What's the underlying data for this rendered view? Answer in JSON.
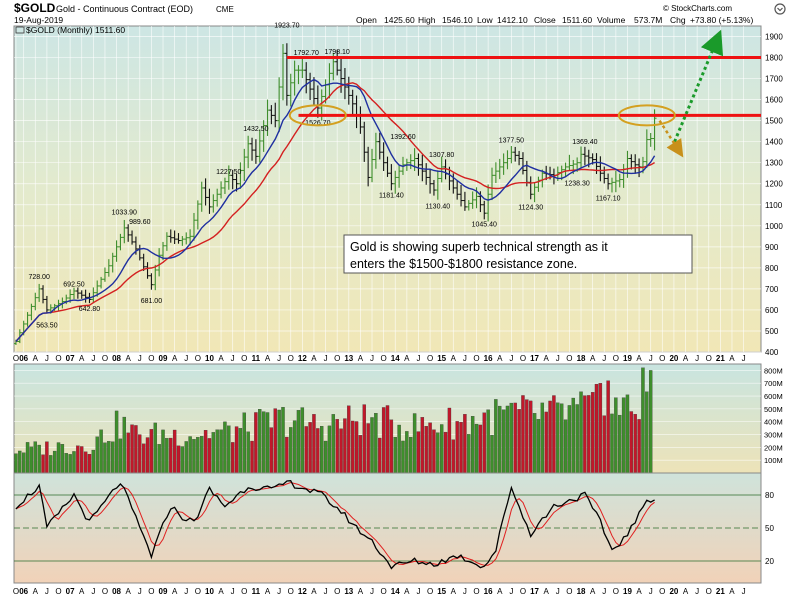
{
  "header": {
    "symbol": "$GOLD",
    "name": "Gold - Continuous Contract (EOD)",
    "exchange": "CME",
    "date": "19-Aug-2019",
    "credit": "© StockCharts.com",
    "stats": {
      "open_label": "Open",
      "open": "1425.60",
      "high_label": "High",
      "high": "1546.10",
      "low_label": "Low",
      "low": "1412.10",
      "close_label": "Close",
      "close": "1511.60",
      "volume_label": "Volume",
      "volume": "573.7M",
      "chg_label": "Chg",
      "chg": "+73.80 (+5.13%)"
    }
  },
  "legend": {
    "label": "$GOLD (Monthly) 1511.60",
    "icon": "chart-legend-icon"
  },
  "annotation": "Gold is showing superb technical strength as it enters the $1500-$1800 resistance zone.",
  "colors": {
    "up": "#3e8e2c",
    "down": "#c0182a",
    "ma_fast": "#1f2fa0",
    "ma_slow": "#d42020",
    "resistance": "#ee1111",
    "ellipse": "#d4a020",
    "arrow": "#1a9a2a",
    "brown_arrow": "#c8901a"
  },
  "chart_data": [
    {
      "type": "line",
      "title": "$GOLD (Monthly)",
      "ylim": [
        400,
        1950
      ],
      "yticks": [
        400,
        500,
        600,
        700,
        800,
        900,
        1000,
        1100,
        1200,
        1300,
        1400,
        1500,
        1600,
        1700,
        1800,
        1900
      ],
      "x_start": "2005-11",
      "x_end": "2021-11",
      "resistance_levels": [
        1525,
        1800
      ],
      "anchors": [
        [
          "2005-11",
          450
        ],
        [
          "2006-05",
          700
        ],
        [
          "2006-07",
          600
        ],
        [
          "2006-11",
          640
        ],
        [
          "2007-02",
          690
        ],
        [
          "2007-06",
          650
        ],
        [
          "2007-11",
          810
        ],
        [
          "2008-03",
          990
        ],
        [
          "2008-06",
          890
        ],
        [
          "2008-10",
          720
        ],
        [
          "2008-12",
          860
        ],
        [
          "2009-02",
          950
        ],
        [
          "2009-05",
          930
        ],
        [
          "2009-08",
          950
        ],
        [
          "2009-11",
          1180
        ],
        [
          "2010-01",
          1090
        ],
        [
          "2010-06",
          1240
        ],
        [
          "2010-08",
          1200
        ],
        [
          "2010-11",
          1390
        ],
        [
          "2011-01",
          1330
        ],
        [
          "2011-04",
          1550
        ],
        [
          "2011-06",
          1500
        ],
        [
          "2011-08",
          1820
        ],
        [
          "2011-09",
          1620
        ],
        [
          "2011-11",
          1740
        ],
        [
          "2012-01",
          1740
        ],
        [
          "2012-05",
          1560
        ],
        [
          "2012-09",
          1780
        ],
        [
          "2012-12",
          1660
        ],
        [
          "2013-02",
          1580
        ],
        [
          "2013-04",
          1470
        ],
        [
          "2013-06",
          1230
        ],
        [
          "2013-08",
          1400
        ],
        [
          "2013-12",
          1200
        ],
        [
          "2014-03",
          1290
        ],
        [
          "2014-06",
          1320
        ],
        [
          "2014-11",
          1170
        ],
        [
          "2015-01",
          1280
        ],
        [
          "2015-04",
          1180
        ],
        [
          "2015-07",
          1090
        ],
        [
          "2015-10",
          1140
        ],
        [
          "2015-12",
          1060
        ],
        [
          "2016-02",
          1240
        ],
        [
          "2016-06",
          1320
        ],
        [
          "2016-07",
          1350
        ],
        [
          "2016-09",
          1320
        ],
        [
          "2016-12",
          1150
        ],
        [
          "2017-03",
          1250
        ],
        [
          "2017-06",
          1240
        ],
        [
          "2017-09",
          1280
        ],
        [
          "2017-12",
          1300
        ],
        [
          "2018-01",
          1340
        ],
        [
          "2018-04",
          1315
        ],
        [
          "2018-06",
          1250
        ],
        [
          "2018-08",
          1200
        ],
        [
          "2018-11",
          1220
        ],
        [
          "2019-01",
          1320
        ],
        [
          "2019-03",
          1290
        ],
        [
          "2019-04",
          1280
        ],
        [
          "2019-05",
          1305
        ],
        [
          "2019-06",
          1410
        ],
        [
          "2019-07",
          1415
        ],
        [
          "2019-08",
          1511.6
        ]
      ],
      "price_labels": [
        {
          "date": "2006-05",
          "value": 728.0,
          "text": "728.00",
          "pos": "above"
        },
        {
          "date": "2006-07",
          "value": 563.5,
          "text": "563.50",
          "pos": "below"
        },
        {
          "date": "2007-02",
          "value": 692.5,
          "text": "692.50",
          "pos": "above"
        },
        {
          "date": "2007-06",
          "value": 642.8,
          "text": "642.80",
          "pos": "below"
        },
        {
          "date": "2008-03",
          "value": 1033.9,
          "text": "1033.90",
          "pos": "above"
        },
        {
          "date": "2008-07",
          "value": 989.6,
          "text": "989.60",
          "pos": "above"
        },
        {
          "date": "2008-10",
          "value": 681.0,
          "text": "681.00",
          "pos": "below"
        },
        {
          "date": "2010-06",
          "value": 1227.5,
          "text": "1227.50",
          "pos": "above"
        },
        {
          "date": "2011-01",
          "value": 1432.5,
          "text": "1432.50",
          "pos": "above"
        },
        {
          "date": "2011-09",
          "value": 1923.7,
          "text": "1923.70",
          "pos": "above"
        },
        {
          "date": "2012-02",
          "value": 1792.7,
          "text": "1792.70",
          "pos": "above"
        },
        {
          "date": "2012-05",
          "value": 1526.7,
          "text": "1526.70",
          "pos": "below"
        },
        {
          "date": "2012-10",
          "value": 1798.1,
          "text": "1798.10",
          "pos": "above"
        },
        {
          "date": "2013-12",
          "value": 1181.4,
          "text": "1181.40",
          "pos": "below"
        },
        {
          "date": "2014-03",
          "value": 1392.6,
          "text": "1392.60",
          "pos": "above"
        },
        {
          "date": "2014-12",
          "value": 1130.4,
          "text": "1130.40",
          "pos": "below"
        },
        {
          "date": "2015-01",
          "value": 1307.8,
          "text": "1307.80",
          "pos": "above"
        },
        {
          "date": "2015-12",
          "value": 1045.4,
          "text": "1045.40",
          "pos": "below"
        },
        {
          "date": "2016-07",
          "value": 1377.5,
          "text": "1377.50",
          "pos": "above"
        },
        {
          "date": "2016-12",
          "value": 1124.3,
          "text": "1124.30",
          "pos": "below"
        },
        {
          "date": "2017-12",
          "value": 1238.3,
          "text": "1238.30",
          "pos": "below"
        },
        {
          "date": "2018-02",
          "value": 1369.4,
          "text": "1369.40",
          "pos": "above"
        },
        {
          "date": "2018-08",
          "value": 1167.1,
          "text": "1167.10",
          "pos": "below"
        }
      ],
      "ellipses": [
        {
          "date": "2012-05",
          "value": 1525
        },
        {
          "date": "2019-06",
          "value": 1525
        }
      ],
      "x_axis_labels": [
        {
          "date": "2005-11",
          "text": "O"
        },
        {
          "date": "2006-01",
          "text": "06",
          "year": true
        },
        {
          "date": "2006-04",
          "text": "A"
        },
        {
          "date": "2006-07",
          "text": "J"
        },
        {
          "date": "2006-10",
          "text": "O"
        },
        {
          "date": "2007-01",
          "text": "07",
          "year": true
        },
        {
          "date": "2007-04",
          "text": "A"
        },
        {
          "date": "2007-07",
          "text": "J"
        },
        {
          "date": "2007-10",
          "text": "O"
        },
        {
          "date": "2008-01",
          "text": "08",
          "year": true
        },
        {
          "date": "2008-04",
          "text": "A"
        },
        {
          "date": "2008-07",
          "text": "J"
        },
        {
          "date": "2008-10",
          "text": "O"
        },
        {
          "date": "2009-01",
          "text": "09",
          "year": true
        },
        {
          "date": "2009-04",
          "text": "A"
        },
        {
          "date": "2009-07",
          "text": "J"
        },
        {
          "date": "2009-10",
          "text": "O"
        },
        {
          "date": "2010-01",
          "text": "10",
          "year": true
        },
        {
          "date": "2010-04",
          "text": "A"
        },
        {
          "date": "2010-07",
          "text": "J"
        },
        {
          "date": "2010-10",
          "text": "O"
        },
        {
          "date": "2011-01",
          "text": "11",
          "year": true
        },
        {
          "date": "2011-04",
          "text": "A"
        },
        {
          "date": "2011-07",
          "text": "J"
        },
        {
          "date": "2011-10",
          "text": "O"
        },
        {
          "date": "2012-01",
          "text": "12",
          "year": true
        },
        {
          "date": "2012-04",
          "text": "A"
        },
        {
          "date": "2012-07",
          "text": "J"
        },
        {
          "date": "2012-10",
          "text": "O"
        },
        {
          "date": "2013-01",
          "text": "13",
          "year": true
        },
        {
          "date": "2013-04",
          "text": "A"
        },
        {
          "date": "2013-07",
          "text": "J"
        },
        {
          "date": "2013-10",
          "text": "O"
        },
        {
          "date": "2014-01",
          "text": "14",
          "year": true
        },
        {
          "date": "2014-04",
          "text": "A"
        },
        {
          "date": "2014-07",
          "text": "J"
        },
        {
          "date": "2014-10",
          "text": "O"
        },
        {
          "date": "2015-01",
          "text": "15",
          "year": true
        },
        {
          "date": "2015-04",
          "text": "A"
        },
        {
          "date": "2015-07",
          "text": "J"
        },
        {
          "date": "2015-10",
          "text": "O"
        },
        {
          "date": "2016-01",
          "text": "16",
          "year": true
        },
        {
          "date": "2016-04",
          "text": "A"
        },
        {
          "date": "2016-07",
          "text": "J"
        },
        {
          "date": "2016-10",
          "text": "O"
        },
        {
          "date": "2017-01",
          "text": "17",
          "year": true
        },
        {
          "date": "2017-04",
          "text": "A"
        },
        {
          "date": "2017-07",
          "text": "J"
        },
        {
          "date": "2017-10",
          "text": "O"
        },
        {
          "date": "2018-01",
          "text": "18",
          "year": true
        },
        {
          "date": "2018-04",
          "text": "A"
        },
        {
          "date": "2018-07",
          "text": "J"
        },
        {
          "date": "2018-10",
          "text": "O"
        },
        {
          "date": "2019-01",
          "text": "19",
          "year": true
        },
        {
          "date": "2019-04",
          "text": "A"
        },
        {
          "date": "2019-07",
          "text": "J"
        },
        {
          "date": "2019-10",
          "text": "O"
        },
        {
          "date": "2020-01",
          "text": "20",
          "year": true
        },
        {
          "date": "2020-04",
          "text": "A"
        },
        {
          "date": "2020-07",
          "text": "J"
        },
        {
          "date": "2020-10",
          "text": "O"
        },
        {
          "date": "2021-01",
          "text": "21",
          "year": true
        },
        {
          "date": "2021-04",
          "text": "A"
        },
        {
          "date": "2021-07",
          "text": "J"
        }
      ]
    },
    {
      "type": "bar",
      "title": "Volume",
      "ylim": [
        0,
        850
      ],
      "yticks": [
        100,
        200,
        300,
        400,
        500,
        600,
        700,
        800
      ],
      "ytick_labels": [
        "100M",
        "200M",
        "300M",
        "400M",
        "500M",
        "600M",
        "700M",
        "800M"
      ],
      "anchors": [
        [
          "2005-11",
          180
        ],
        [
          "2007-06",
          220
        ],
        [
          "2008-02",
          380
        ],
        [
          "2008-06",
          300
        ],
        [
          "2009-06",
          300
        ],
        [
          "2010-06",
          320
        ],
        [
          "2011-08",
          420
        ],
        [
          "2012-06",
          370
        ],
        [
          "2013-04",
          420
        ],
        [
          "2014-06",
          360
        ],
        [
          "2015-06",
          400
        ],
        [
          "2016-06",
          460
        ],
        [
          "2017-06",
          460
        ],
        [
          "2018-06",
          520
        ],
        [
          "2019-03",
          500
        ],
        [
          "2019-07",
          640
        ]
      ],
      "notable": [
        [
          "2018-06",
          700
        ],
        [
          "2018-08",
          720
        ],
        [
          "2019-05",
          820
        ],
        [
          "2019-07",
          800
        ],
        [
          "2019-08",
          573.7
        ]
      ]
    },
    {
      "type": "line",
      "title": "Stochastic",
      "ylim": [
        0,
        100
      ],
      "yticks": [
        20,
        50,
        80
      ],
      "bands": [
        20,
        50,
        80
      ],
      "anchors": [
        [
          "2005-11",
          70
        ],
        [
          "2006-05",
          88
        ],
        [
          "2006-07",
          50
        ],
        [
          "2007-02",
          80
        ],
        [
          "2007-06",
          55
        ],
        [
          "2008-02",
          92
        ],
        [
          "2008-10",
          25
        ],
        [
          "2009-03",
          70
        ],
        [
          "2009-06",
          60
        ],
        [
          "2009-09",
          55
        ],
        [
          "2010-01",
          85
        ],
        [
          "2010-05",
          70
        ],
        [
          "2010-11",
          88
        ],
        [
          "2011-06",
          85
        ],
        [
          "2011-09",
          92
        ],
        [
          "2012-06",
          80
        ],
        [
          "2012-11",
          65
        ],
        [
          "2013-03",
          50
        ],
        [
          "2013-07",
          38
        ],
        [
          "2013-12",
          15
        ],
        [
          "2014-06",
          20
        ],
        [
          "2014-11",
          17
        ],
        [
          "2015-05",
          25
        ],
        [
          "2015-12",
          15
        ],
        [
          "2016-03",
          30
        ],
        [
          "2016-07",
          88
        ],
        [
          "2016-10",
          60
        ],
        [
          "2016-12",
          45
        ],
        [
          "2017-06",
          70
        ],
        [
          "2018-02",
          80
        ],
        [
          "2018-06",
          55
        ],
        [
          "2018-09",
          30
        ],
        [
          "2018-12",
          40
        ],
        [
          "2019-03",
          55
        ],
        [
          "2019-06",
          75
        ],
        [
          "2019-08",
          78
        ]
      ]
    }
  ]
}
